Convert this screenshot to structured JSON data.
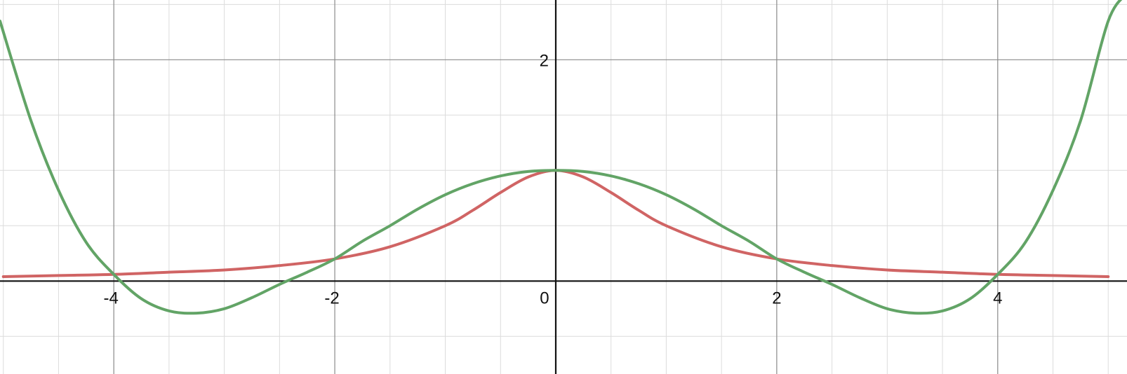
{
  "chart_data": {
    "type": "line",
    "title": "",
    "xlabel": "",
    "ylabel": "",
    "xlim": [
      -5.03,
      5.17
    ],
    "ylim": [
      -0.84,
      2.54
    ],
    "grid": true,
    "legend": "none",
    "x_ticks": [
      {
        "value": -4,
        "label": "-4"
      },
      {
        "value": -2,
        "label": "-2"
      },
      {
        "value": 0,
        "label": "0"
      },
      {
        "value": 2,
        "label": "2"
      },
      {
        "value": 4,
        "label": "4"
      }
    ],
    "y_ticks": [
      {
        "value": 2,
        "label": "2"
      }
    ],
    "series": [
      {
        "color": "#d06464",
        "x": [
          -5.0,
          -4.5,
          -4.0,
          -3.5,
          -3.0,
          -2.5,
          -2.0,
          -1.5,
          -1.0,
          -0.75,
          -0.5,
          -0.25,
          0.0,
          0.25,
          0.5,
          0.75,
          1.0,
          1.5,
          2.0,
          2.5,
          3.0,
          3.5,
          4.0,
          4.5,
          5.0
        ],
        "y": [
          0.04,
          0.05,
          0.06,
          0.08,
          0.1,
          0.14,
          0.2,
          0.31,
          0.5,
          0.64,
          0.8,
          0.94,
          1.0,
          0.94,
          0.8,
          0.64,
          0.5,
          0.31,
          0.2,
          0.14,
          0.1,
          0.08,
          0.06,
          0.05,
          0.04
        ]
      },
      {
        "color": "#62a466",
        "x": [
          -5.03,
          -4.75,
          -4.5,
          -4.25,
          -4.0,
          -3.75,
          -3.5,
          -3.25,
          -3.0,
          -2.75,
          -2.5,
          -2.25,
          -2.0,
          -1.75,
          -1.5,
          -1.25,
          -1.0,
          -0.75,
          -0.5,
          -0.25,
          0.0,
          0.25,
          0.5,
          0.75,
          1.0,
          1.25,
          1.5,
          1.75,
          2.0,
          2.25,
          2.5,
          2.75,
          3.0,
          3.25,
          3.5,
          3.75,
          4.0,
          4.25,
          4.5,
          4.75,
          5.0,
          5.17
        ],
        "y": [
          2.35,
          1.45,
          0.82,
          0.35,
          0.06,
          -0.16,
          -0.27,
          -0.29,
          -0.25,
          -0.15,
          -0.03,
          0.08,
          0.2,
          0.36,
          0.5,
          0.65,
          0.78,
          0.88,
          0.95,
          0.99,
          1.0,
          0.99,
          0.95,
          0.88,
          0.78,
          0.65,
          0.5,
          0.36,
          0.2,
          0.08,
          -0.03,
          -0.15,
          -0.25,
          -0.29,
          -0.27,
          -0.16,
          0.06,
          0.35,
          0.82,
          1.45,
          2.35,
          2.6
        ]
      }
    ]
  }
}
